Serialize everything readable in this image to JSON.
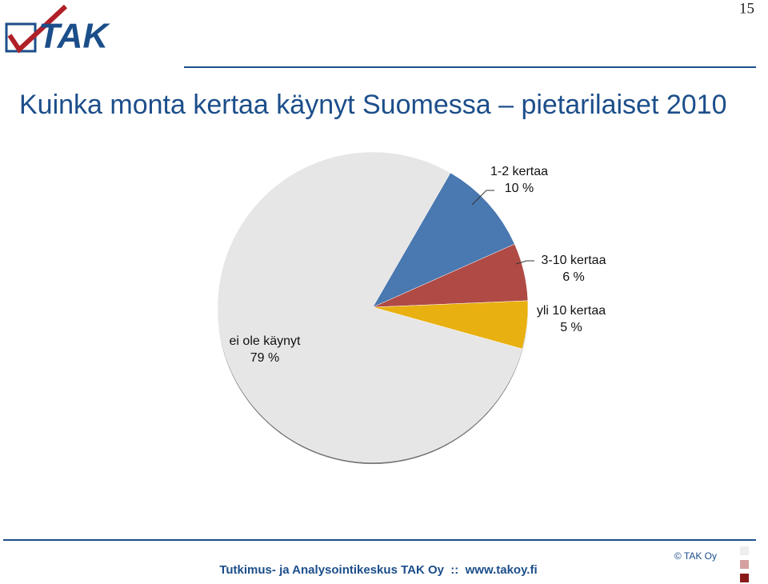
{
  "page_number": "15",
  "logo": "TAK",
  "chart_data": {
    "type": "pie",
    "title": "Kuinka monta kertaa käynyt Suomessa – pietarilaiset 2010",
    "categories": [
      "1-2 kertaa",
      "3-10 kertaa",
      "yli 10 kertaa",
      "ei ole käynyt"
    ],
    "values": [
      10,
      6,
      5,
      79
    ],
    "value_labels": [
      "10 %",
      "6 %",
      "5 %",
      "79 %"
    ],
    "colors": [
      "#4a78b0",
      "#b04a44",
      "#e8b010",
      "#e6e6e6"
    ]
  },
  "footer": {
    "text": "Tutkimus- ja Analysointikeskus TAK Oy  ::  www.takoy.fi",
    "copyright": "© TAK Oy"
  }
}
